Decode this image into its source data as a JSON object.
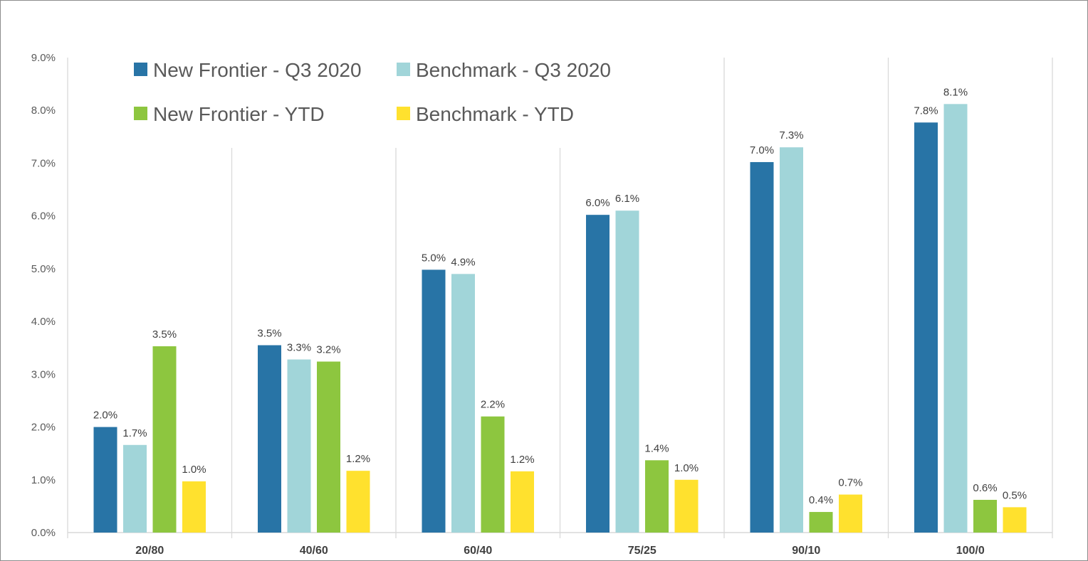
{
  "chart_data": {
    "type": "bar",
    "title": "",
    "xlabel": "",
    "ylabel": "",
    "ylim": [
      0,
      9
    ],
    "yticks": [
      "0.0%",
      "1.0%",
      "2.0%",
      "3.0%",
      "4.0%",
      "5.0%",
      "6.0%",
      "7.0%",
      "8.0%",
      "9.0%"
    ],
    "categories": [
      "20/80",
      "40/60",
      "60/40",
      "75/25",
      "90/10",
      "100/0"
    ],
    "series": [
      {
        "name": "New Frontier - Q3 2020",
        "color": "#2874A6",
        "values": [
          2.0,
          3.55,
          4.98,
          6.02,
          7.02,
          7.77
        ],
        "labels": [
          "2.0%",
          "3.5%",
          "5.0%",
          "6.0%",
          "7.0%",
          "7.8%"
        ]
      },
      {
        "name": "Benchmark - Q3 2020",
        "color": "#A1D5D9",
        "values": [
          1.66,
          3.28,
          4.9,
          6.1,
          7.3,
          8.12
        ],
        "labels": [
          "1.7%",
          "3.3%",
          "4.9%",
          "6.1%",
          "7.3%",
          "8.1%"
        ]
      },
      {
        "name": "New Frontier - YTD",
        "color": "#8DC63F",
        "values": [
          3.53,
          3.24,
          2.2,
          1.37,
          0.39,
          0.62
        ],
        "labels": [
          "3.5%",
          "3.2%",
          "2.2%",
          "1.4%",
          "0.4%",
          "0.6%"
        ]
      },
      {
        "name": "Benchmark - YTD",
        "color": "#FFE12E",
        "values": [
          0.97,
          1.17,
          1.16,
          1.0,
          0.72,
          0.48
        ],
        "labels": [
          "1.0%",
          "1.2%",
          "1.2%",
          "1.0%",
          "0.7%",
          "0.5%"
        ]
      }
    ],
    "grid": "vertical separators between categories",
    "legend_position": "top-left"
  }
}
